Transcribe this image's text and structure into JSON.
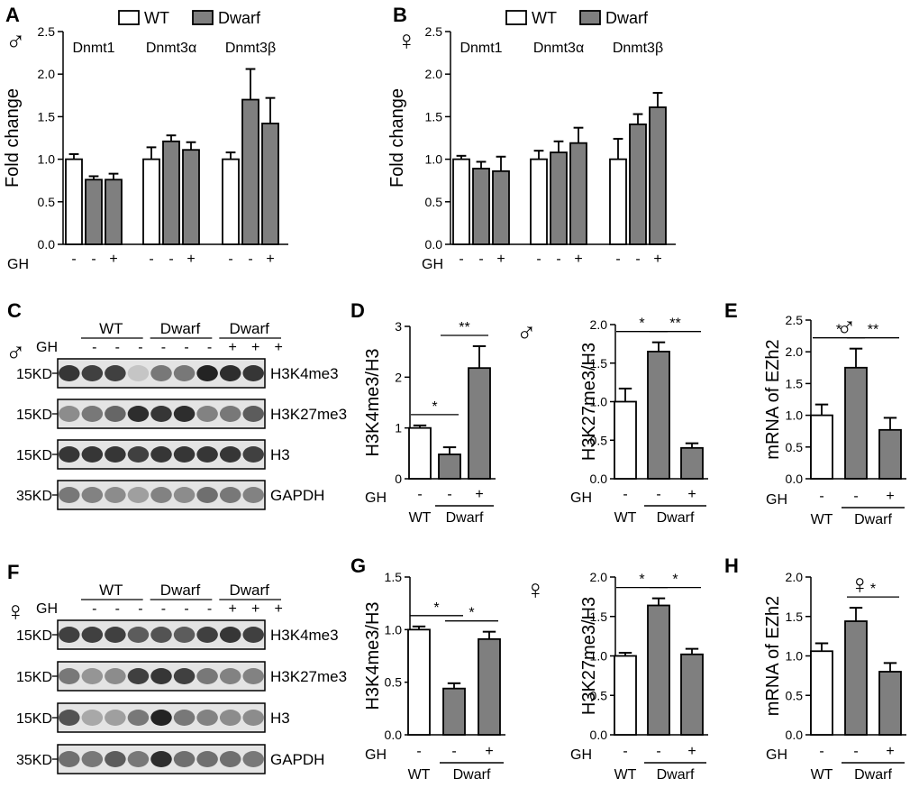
{
  "colors": {
    "wt": "#ffffff",
    "dwarf": "#7f7f7f",
    "ink": "#000000"
  },
  "symbols": {
    "male": "♂",
    "female": "♀"
  },
  "chart_data": [
    {
      "id": "A",
      "panel_label": "A",
      "sex": "male",
      "type": "bar",
      "ylabel": "Fold change",
      "ylim": [
        0,
        2.5
      ],
      "yticks": [
        "0.0",
        "0.5",
        "1.0",
        "1.5",
        "2.0",
        "2.5"
      ],
      "legend": {
        "wt": "WT",
        "dwarf": "Dwarf",
        "position": "top"
      },
      "gh_label": "GH",
      "groups": [
        {
          "label": "Dnmt1",
          "bars": [
            {
              "series": "WT",
              "gh": "-",
              "value": 1.0,
              "err": 0.06
            },
            {
              "series": "Dwarf",
              "gh": "-",
              "value": 0.76,
              "err": 0.04
            },
            {
              "series": "Dwarf",
              "gh": "+",
              "value": 0.76,
              "err": 0.07
            }
          ]
        },
        {
          "label": "Dnmt3α",
          "bars": [
            {
              "series": "WT",
              "gh": "-",
              "value": 1.0,
              "err": 0.14
            },
            {
              "series": "Dwarf",
              "gh": "-",
              "value": 1.21,
              "err": 0.07
            },
            {
              "series": "Dwarf",
              "gh": "+",
              "value": 1.11,
              "err": 0.09
            }
          ]
        },
        {
          "label": "Dnmt3β",
          "bars": [
            {
              "series": "WT",
              "gh": "-",
              "value": 1.0,
              "err": 0.08
            },
            {
              "series": "Dwarf",
              "gh": "-",
              "value": 1.7,
              "err": 0.36
            },
            {
              "series": "Dwarf",
              "gh": "+",
              "value": 1.42,
              "err": 0.3
            }
          ]
        }
      ]
    },
    {
      "id": "B",
      "panel_label": "B",
      "sex": "female",
      "type": "bar",
      "ylabel": "Fold change",
      "ylim": [
        0,
        2.5
      ],
      "yticks": [
        "0.0",
        "0.5",
        "1.0",
        "1.5",
        "2.0",
        "2.5"
      ],
      "legend": {
        "wt": "WT",
        "dwarf": "Dwarf",
        "position": "top"
      },
      "gh_label": "GH",
      "groups": [
        {
          "label": "Dnmt1",
          "bars": [
            {
              "series": "WT",
              "gh": "-",
              "value": 1.0,
              "err": 0.04
            },
            {
              "series": "Dwarf",
              "gh": "-",
              "value": 0.89,
              "err": 0.08
            },
            {
              "series": "Dwarf",
              "gh": "+",
              "value": 0.86,
              "err": 0.17
            }
          ]
        },
        {
          "label": "Dnmt3α",
          "bars": [
            {
              "series": "WT",
              "gh": "-",
              "value": 1.0,
              "err": 0.1
            },
            {
              "series": "Dwarf",
              "gh": "-",
              "value": 1.08,
              "err": 0.13
            },
            {
              "series": "Dwarf",
              "gh": "+",
              "value": 1.19,
              "err": 0.18
            }
          ]
        },
        {
          "label": "Dnmt3β",
          "bars": [
            {
              "series": "WT",
              "gh": "-",
              "value": 1.0,
              "err": 0.24
            },
            {
              "series": "Dwarf",
              "gh": "-",
              "value": 1.41,
              "err": 0.12
            },
            {
              "series": "Dwarf",
              "gh": "+",
              "value": 1.61,
              "err": 0.17
            }
          ]
        }
      ]
    },
    {
      "id": "D1",
      "panel_label": "D",
      "sex": "male",
      "type": "bar",
      "ylabel": "H3K4me3/H3",
      "ylim": [
        0,
        3
      ],
      "yticks": [
        "0",
        "1",
        "2",
        "3"
      ],
      "gh_label": "GH",
      "wt_label": "WT",
      "dwarf_label": "Dwarf",
      "bars": [
        {
          "series": "WT",
          "gh": "-",
          "value": 1.0,
          "err": 0.05
        },
        {
          "series": "Dwarf",
          "gh": "-",
          "value": 0.48,
          "err": 0.14
        },
        {
          "series": "Dwarf",
          "gh": "+",
          "value": 2.18,
          "err": 0.43
        }
      ],
      "sig": [
        {
          "from": 0,
          "to": 1,
          "label": "*"
        },
        {
          "from": 1,
          "to": 2,
          "label": "**"
        }
      ]
    },
    {
      "id": "D2",
      "panel_label": "",
      "sex": "male",
      "type": "bar",
      "ylabel": "H3K27me3/H3",
      "ylim": [
        0,
        2.0
      ],
      "yticks": [
        "0.0",
        "0.5",
        "1.0",
        "1.5",
        "2.0"
      ],
      "gh_label": "GH",
      "wt_label": "WT",
      "dwarf_label": "Dwarf",
      "bars": [
        {
          "series": "WT",
          "gh": "-",
          "value": 1.0,
          "err": 0.17
        },
        {
          "series": "Dwarf",
          "gh": "-",
          "value": 1.65,
          "err": 0.12
        },
        {
          "series": "Dwarf",
          "gh": "+",
          "value": 0.4,
          "err": 0.06
        }
      ],
      "sig": [
        {
          "from": 0,
          "to": 1,
          "label": "*"
        },
        {
          "from": 1,
          "to": 2,
          "label": "**"
        }
      ]
    },
    {
      "id": "E",
      "panel_label": "E",
      "sex": "male",
      "type": "bar",
      "ylabel": "mRNA of EZh2",
      "ylim": [
        0,
        2.5
      ],
      "yticks": [
        "0.0",
        "0.5",
        "1.0",
        "1.5",
        "2.0",
        "2.5"
      ],
      "gh_label": "GH",
      "wt_label": "WT",
      "dwarf_label": "Dwarf",
      "bars": [
        {
          "series": "WT",
          "gh": "-",
          "value": 1.0,
          "err": 0.17
        },
        {
          "series": "Dwarf",
          "gh": "-",
          "value": 1.75,
          "err": 0.3
        },
        {
          "series": "Dwarf",
          "gh": "+",
          "value": 0.77,
          "err": 0.19
        }
      ],
      "sig": [
        {
          "from": 0,
          "to": 1,
          "label": "*"
        },
        {
          "from": 1,
          "to": 2,
          "label": "**"
        }
      ]
    },
    {
      "id": "G1",
      "panel_label": "G",
      "sex": "female",
      "type": "bar",
      "ylabel": "H3K4me3/H3",
      "ylim": [
        0,
        1.5
      ],
      "yticks": [
        "0.0",
        "0.5",
        "1.0",
        "1.5"
      ],
      "gh_label": "GH",
      "wt_label": "WT",
      "dwarf_label": "Dwarf",
      "bars": [
        {
          "series": "WT",
          "gh": "-",
          "value": 1.0,
          "err": 0.03
        },
        {
          "series": "Dwarf",
          "gh": "-",
          "value": 0.44,
          "err": 0.05
        },
        {
          "series": "Dwarf",
          "gh": "+",
          "value": 0.91,
          "err": 0.07
        }
      ],
      "sig": [
        {
          "from": 0,
          "to": 1,
          "label": "*"
        },
        {
          "from": 1,
          "to": 2,
          "label": "*"
        }
      ]
    },
    {
      "id": "G2",
      "panel_label": "",
      "sex": "female",
      "type": "bar",
      "ylabel": "H3K27me3/H3",
      "ylim": [
        0,
        2.0
      ],
      "yticks": [
        "0.0",
        "0.5",
        "1.0",
        "1.5",
        "2.0"
      ],
      "gh_label": "GH",
      "wt_label": "WT",
      "dwarf_label": "Dwarf",
      "bars": [
        {
          "series": "WT",
          "gh": "-",
          "value": 1.0,
          "err": 0.04
        },
        {
          "series": "Dwarf",
          "gh": "-",
          "value": 1.64,
          "err": 0.09
        },
        {
          "series": "Dwarf",
          "gh": "+",
          "value": 1.02,
          "err": 0.07
        }
      ],
      "sig": [
        {
          "from": 0,
          "to": 1,
          "label": "*"
        },
        {
          "from": 1,
          "to": 2,
          "label": "*"
        }
      ]
    },
    {
      "id": "H",
      "panel_label": "H",
      "sex": "female",
      "type": "bar",
      "ylabel": "mRNA of EZh2",
      "ylim": [
        0,
        2.0
      ],
      "yticks": [
        "0.0",
        "0.5",
        "1.0",
        "1.5",
        "2.0"
      ],
      "gh_label": "GH",
      "wt_label": "WT",
      "dwarf_label": "Dwarf",
      "bars": [
        {
          "series": "WT",
          "gh": "-",
          "value": 1.06,
          "err": 0.1
        },
        {
          "series": "Dwarf",
          "gh": "-",
          "value": 1.44,
          "err": 0.17
        },
        {
          "series": "Dwarf",
          "gh": "+",
          "value": 0.8,
          "err": 0.11
        }
      ],
      "sig": [
        {
          "from": 1,
          "to": 2,
          "label": "*"
        }
      ]
    }
  ],
  "blots": [
    {
      "id": "C",
      "panel_label": "C",
      "sex": "male",
      "group_labels": [
        "WT",
        "Dwarf",
        "Dwarf"
      ],
      "gh_label": "GH",
      "gh_values": [
        "-",
        "-",
        "-",
        "-",
        "-",
        "-",
        "+",
        "+",
        "+"
      ],
      "rows": [
        {
          "mw": "15KD",
          "protein": "H3K4me3",
          "intensities": [
            0.9,
            0.85,
            0.85,
            0.15,
            0.55,
            0.55,
            1,
            0.95,
            0.9
          ]
        },
        {
          "mw": "15KD",
          "protein": "H3K27me3",
          "intensities": [
            0.45,
            0.55,
            0.65,
            0.95,
            0.9,
            0.95,
            0.5,
            0.55,
            0.7
          ]
        },
        {
          "mw": "15KD",
          "protein": "H3",
          "intensities": [
            0.9,
            0.9,
            0.9,
            0.85,
            0.9,
            0.9,
            0.9,
            0.9,
            0.85
          ]
        },
        {
          "mw": "35KD",
          "protein": "GAPDH",
          "intensities": [
            0.55,
            0.5,
            0.45,
            0.35,
            0.5,
            0.45,
            0.6,
            0.55,
            0.5
          ]
        }
      ]
    },
    {
      "id": "F",
      "panel_label": "F",
      "sex": "female",
      "group_labels": [
        "WT",
        "Dwarf",
        "Dwarf"
      ],
      "gh_label": "GH",
      "gh_values": [
        "-",
        "-",
        "-",
        "-",
        "-",
        "-",
        "+",
        "+",
        "+"
      ],
      "rows": [
        {
          "mw": "15KD",
          "protein": "H3K4me3",
          "intensities": [
            0.85,
            0.85,
            0.85,
            0.7,
            0.75,
            0.7,
            0.85,
            0.9,
            0.85
          ]
        },
        {
          "mw": "15KD",
          "protein": "H3K27me3",
          "intensities": [
            0.55,
            0.4,
            0.45,
            0.85,
            0.9,
            0.85,
            0.55,
            0.5,
            0.5
          ]
        },
        {
          "mw": "15KD",
          "protein": "H3",
          "intensities": [
            0.75,
            0.3,
            0.35,
            0.55,
            1,
            0.55,
            0.5,
            0.45,
            0.45
          ]
        },
        {
          "mw": "35KD",
          "protein": "GAPDH",
          "intensities": [
            0.6,
            0.55,
            0.7,
            0.55,
            0.95,
            0.6,
            0.6,
            0.6,
            0.55
          ]
        }
      ]
    }
  ]
}
